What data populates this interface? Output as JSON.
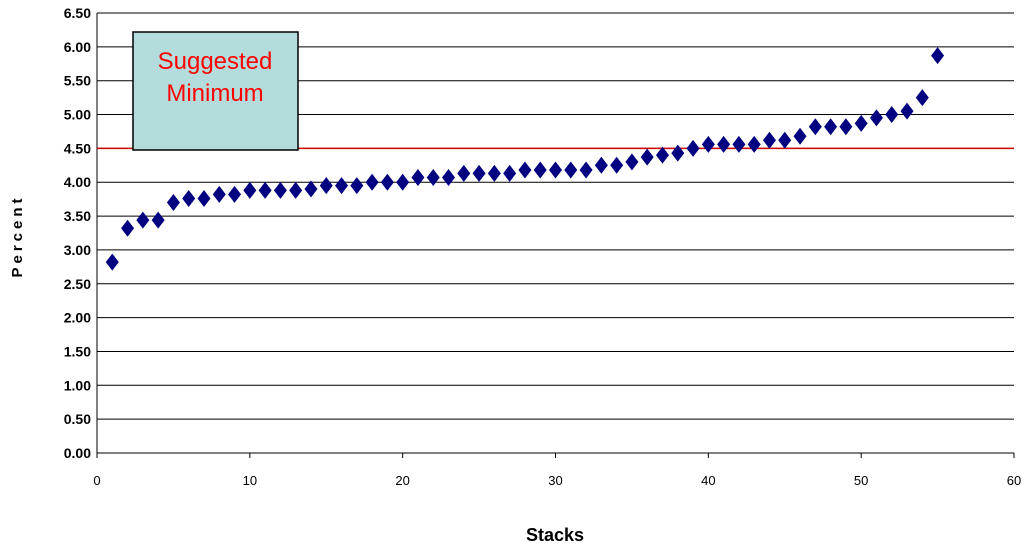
{
  "chart_data": {
    "type": "scatter",
    "xlabel": "Stacks",
    "ylabel": "Percent",
    "xlim": [
      0,
      60
    ],
    "ylim": [
      0,
      6.5
    ],
    "x_ticks": [
      "0",
      "10",
      "20",
      "30",
      "40",
      "50",
      "60"
    ],
    "y_ticks": [
      "0.00",
      "0.50",
      "1.00",
      "1.50",
      "2.00",
      "2.50",
      "3.00",
      "3.50",
      "4.00",
      "4.50",
      "5.00",
      "5.50",
      "6.00",
      "6.50"
    ],
    "grid": "horizontal",
    "marker": "diamond",
    "series": [
      {
        "color": "#000080",
        "x": [
          1,
          2,
          3,
          4,
          5,
          6,
          7,
          8,
          9,
          10,
          11,
          12,
          13,
          14,
          15,
          16,
          17,
          18,
          19,
          20,
          21,
          22,
          23,
          24,
          25,
          26,
          27,
          28,
          29,
          30,
          31,
          32,
          33,
          34,
          35,
          36,
          37,
          38,
          39,
          40,
          41,
          42,
          43,
          44,
          45,
          46,
          47,
          48,
          49,
          50,
          51,
          52,
          53,
          54,
          55
        ],
        "y": [
          2.82,
          3.32,
          3.44,
          3.44,
          3.7,
          3.76,
          3.76,
          3.82,
          3.82,
          3.88,
          3.88,
          3.88,
          3.88,
          3.9,
          3.95,
          3.95,
          3.95,
          4.0,
          4.0,
          4.0,
          4.07,
          4.07,
          4.07,
          4.13,
          4.13,
          4.13,
          4.13,
          4.18,
          4.18,
          4.18,
          4.18,
          4.18,
          4.25,
          4.25,
          4.3,
          4.37,
          4.4,
          4.43,
          4.5,
          4.56,
          4.56,
          4.56,
          4.56,
          4.62,
          4.62,
          4.68,
          4.82,
          4.82,
          4.82,
          4.87,
          4.95,
          5.0,
          5.05,
          5.25,
          5.87
        ]
      }
    ],
    "reference_line": {
      "y": 4.5,
      "color": "#cc0000"
    },
    "annotation": {
      "lines": [
        "Suggested",
        "Minimum"
      ],
      "color": "#ff0000",
      "box_fill": "#b4dcdc"
    }
  }
}
